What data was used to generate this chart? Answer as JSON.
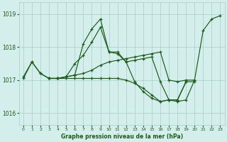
{
  "title": "Graphe pression niveau de la mer (hPa)",
  "bg_color": "#d4eeeb",
  "grid_color": "#a8d4d0",
  "line_color": "#1a5c1a",
  "xlim": [
    -0.5,
    23.5
  ],
  "ylim": [
    1015.65,
    1019.35
  ],
  "yticks": [
    1016,
    1017,
    1018,
    1019
  ],
  "xticks": [
    0,
    1,
    2,
    3,
    4,
    5,
    6,
    7,
    8,
    9,
    10,
    11,
    12,
    13,
    14,
    15,
    16,
    17,
    18,
    19,
    20,
    21,
    22,
    23
  ],
  "series": [
    {
      "x": [
        0,
        1,
        2,
        3,
        4,
        5,
        6,
        7,
        8,
        9,
        10,
        11,
        12,
        13,
        14,
        15,
        16,
        17,
        18,
        19,
        20,
        21,
        22,
        23
      ],
      "y": [
        1017.05,
        1017.55,
        1017.2,
        1017.05,
        1017.05,
        1017.1,
        1017.15,
        1017.2,
        1017.3,
        1017.45,
        1017.55,
        1017.6,
        1017.65,
        1017.7,
        1017.75,
        1017.8,
        1017.85,
        1017.0,
        1016.95,
        1017.0,
        1017.0,
        1018.5,
        1018.85,
        1018.95
      ]
    },
    {
      "x": [
        0,
        1,
        2,
        3,
        4,
        5,
        6,
        7,
        8,
        9,
        10,
        11,
        12,
        13,
        14,
        15,
        16,
        17,
        18,
        19,
        20
      ],
      "y": [
        1017.1,
        1017.55,
        1017.2,
        1017.05,
        1017.05,
        1017.1,
        1017.5,
        1017.75,
        1018.15,
        1018.6,
        1017.85,
        1017.85,
        1017.55,
        1017.6,
        1017.65,
        1017.7,
        1016.95,
        1016.4,
        1016.35,
        1016.4,
        1017.0
      ]
    },
    {
      "x": [
        3,
        4,
        5,
        6,
        7,
        8,
        9,
        10,
        11,
        12,
        13,
        14,
        15,
        16,
        17,
        18,
        19
      ],
      "y": [
        1017.05,
        1017.05,
        1017.1,
        1017.15,
        1018.1,
        1018.55,
        1018.85,
        1017.85,
        1017.8,
        1017.55,
        1016.95,
        1016.65,
        1016.45,
        1016.35,
        1016.4,
        1016.4,
        1016.95
      ]
    },
    {
      "x": [
        3,
        4,
        5,
        6,
        7,
        8,
        9,
        10,
        11,
        12,
        13,
        14,
        15,
        16,
        17,
        18,
        19,
        20
      ],
      "y": [
        1017.05,
        1017.05,
        1017.05,
        1017.05,
        1017.05,
        1017.05,
        1017.05,
        1017.05,
        1017.05,
        1017.0,
        1016.9,
        1016.75,
        1016.55,
        1016.35,
        1016.4,
        1016.4,
        1016.95,
        1016.95
      ]
    }
  ]
}
